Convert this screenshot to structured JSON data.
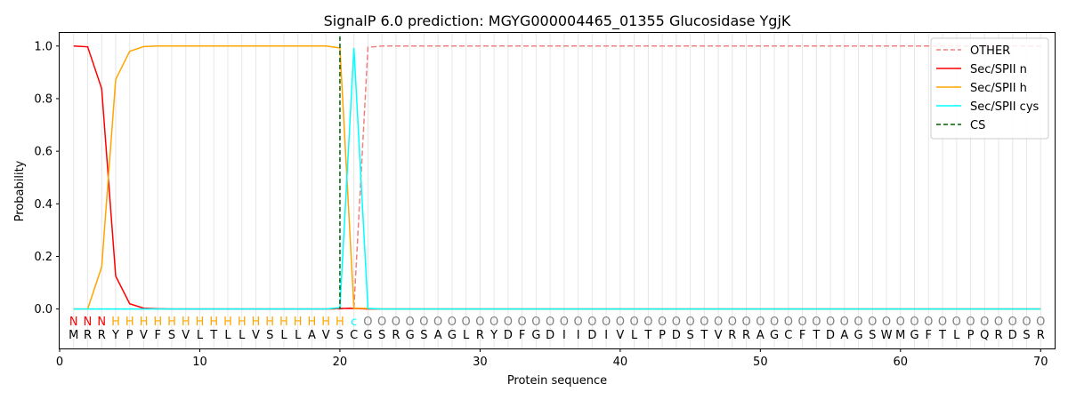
{
  "chart_data": {
    "type": "line",
    "title": "SignalP 6.0 prediction: MGYG000004465_01355 Glucosidase YgjK",
    "xlabel": "Protein sequence",
    "ylabel": "Probability",
    "xlim": [
      0,
      71
    ],
    "ylim": [
      -0.15,
      1.05
    ],
    "x_ticks": [
      "0",
      "10",
      "20",
      "30",
      "40",
      "50",
      "60",
      "70"
    ],
    "y_ticks": [
      "0.0",
      "0.2",
      "0.4",
      "0.6",
      "0.8",
      "1.0"
    ],
    "grid": "vertical lines at each residue",
    "legend_position": "top-right",
    "sequence": [
      "M",
      "R",
      "R",
      "Y",
      "P",
      "V",
      "F",
      "S",
      "V",
      "L",
      "T",
      "L",
      "L",
      "V",
      "S",
      "L",
      "L",
      "A",
      "V",
      "S",
      "C",
      "G",
      "S",
      "R",
      "G",
      "S",
      "A",
      "G",
      "L",
      "R",
      "Y",
      "D",
      "F",
      "G",
      "D",
      "I",
      "I",
      "D",
      "I",
      "V",
      "L",
      "T",
      "P",
      "D",
      "S",
      "T",
      "V",
      "R",
      "R",
      "A",
      "G",
      "C",
      "F",
      "T",
      "D",
      "A",
      "G",
      "S",
      "W",
      "M",
      "G",
      "F",
      "T",
      "L",
      "P",
      "Q",
      "R",
      "D",
      "S",
      "R"
    ],
    "regions": [
      "N",
      "N",
      "N",
      "H",
      "H",
      "H",
      "H",
      "H",
      "H",
      "H",
      "H",
      "H",
      "H",
      "H",
      "H",
      "H",
      "H",
      "H",
      "H",
      "H",
      "c",
      "O",
      "O",
      "O",
      "O",
      "O",
      "O",
      "O",
      "O",
      "O",
      "O",
      "O",
      "O",
      "O",
      "O",
      "O",
      "O",
      "O",
      "O",
      "O",
      "O",
      "O",
      "O",
      "O",
      "O",
      "O",
      "O",
      "O",
      "O",
      "O",
      "O",
      "O",
      "O",
      "O",
      "O",
      "O",
      "O",
      "O",
      "O",
      "O",
      "O",
      "O",
      "O",
      "O",
      "O",
      "O",
      "O",
      "O",
      "O",
      "O"
    ],
    "region_colors": {
      "N": "#ff0000",
      "H": "#ffa500",
      "c": "#00ffff",
      "O": "#808080"
    },
    "cs_position": 20,
    "series": [
      {
        "name": "OTHER",
        "color": "#f08080",
        "style": "dashed",
        "values": [
          0,
          0,
          0,
          0,
          0,
          0,
          0,
          0,
          0,
          0,
          0,
          0,
          0,
          0,
          0,
          0,
          0,
          0,
          0,
          0,
          0.005,
          0.995,
          1,
          1,
          1,
          1,
          1,
          1,
          1,
          1,
          1,
          1,
          1,
          1,
          1,
          1,
          1,
          1,
          1,
          1,
          1,
          1,
          1,
          1,
          1,
          1,
          1,
          1,
          1,
          1,
          1,
          1,
          1,
          1,
          1,
          1,
          1,
          1,
          1,
          1,
          1,
          1,
          1,
          1,
          1,
          1,
          1,
          1,
          1,
          1
        ]
      },
      {
        "name": "Sec/SPII n",
        "color": "#ff0000",
        "style": "solid",
        "values": [
          1.0,
          0.997,
          0.838,
          0.125,
          0.02,
          0.003,
          0.001,
          0,
          0,
          0,
          0,
          0,
          0,
          0,
          0,
          0,
          0,
          0,
          0,
          0.002,
          0.002,
          0,
          0,
          0,
          0,
          0,
          0,
          0,
          0,
          0,
          0,
          0,
          0,
          0,
          0,
          0,
          0,
          0,
          0,
          0,
          0,
          0,
          0,
          0,
          0,
          0,
          0,
          0,
          0,
          0,
          0,
          0,
          0,
          0,
          0,
          0,
          0,
          0,
          0,
          0,
          0,
          0,
          0,
          0,
          0,
          0,
          0,
          0,
          0,
          0
        ]
      },
      {
        "name": "Sec/SPII h",
        "color": "#ffa500",
        "style": "solid",
        "values": [
          0,
          0,
          0.16,
          0.873,
          0.98,
          0.998,
          1,
          1,
          1,
          1,
          1,
          1,
          1,
          1,
          1,
          1,
          1,
          1,
          1,
          0.993,
          0.003,
          0.002,
          0,
          0,
          0,
          0,
          0,
          0,
          0,
          0,
          0,
          0,
          0,
          0,
          0,
          0,
          0,
          0,
          0,
          0,
          0,
          0,
          0,
          0,
          0,
          0,
          0,
          0,
          0,
          0,
          0,
          0,
          0,
          0,
          0,
          0,
          0,
          0,
          0,
          0,
          0,
          0,
          0,
          0,
          0,
          0,
          0,
          0,
          0,
          0
        ]
      },
      {
        "name": "Sec/SPII cys",
        "color": "#00ffff",
        "style": "solid",
        "values": [
          0,
          0,
          0,
          0,
          0,
          0,
          0,
          0,
          0,
          0,
          0,
          0,
          0,
          0,
          0,
          0,
          0,
          0,
          0,
          0.005,
          0.993,
          0.002,
          0,
          0,
          0,
          0,
          0,
          0,
          0,
          0,
          0,
          0,
          0,
          0,
          0,
          0,
          0,
          0,
          0,
          0,
          0,
          0,
          0,
          0,
          0,
          0,
          0,
          0,
          0,
          0,
          0,
          0,
          0,
          0,
          0,
          0,
          0,
          0,
          0,
          0,
          0,
          0,
          0,
          0,
          0,
          0,
          0,
          0,
          0,
          0
        ]
      },
      {
        "name": "CS",
        "color": "#006400",
        "style": "dashed",
        "values": []
      }
    ]
  }
}
